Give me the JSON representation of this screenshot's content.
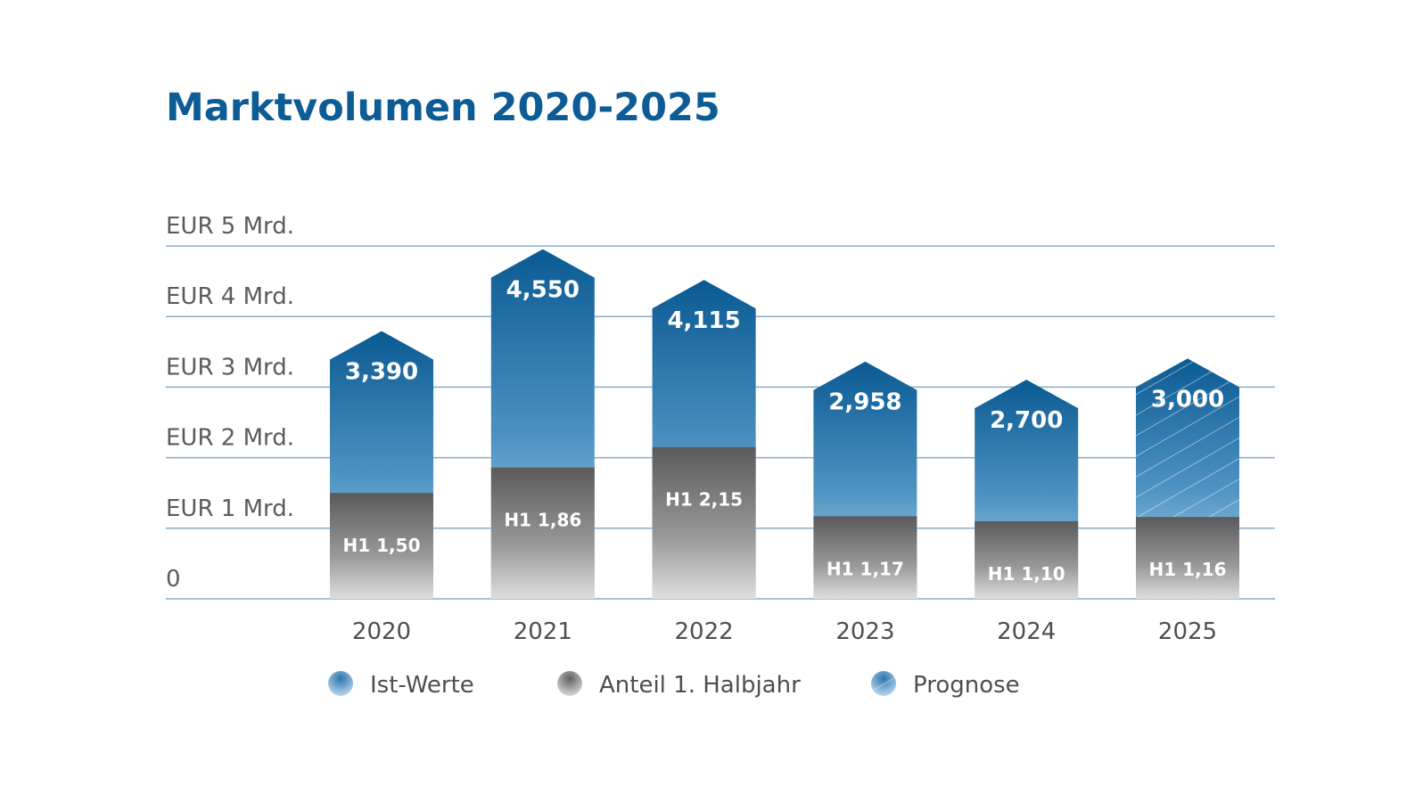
{
  "chart_data": {
    "type": "bar",
    "title": "Marktvolumen 2020-2025",
    "categories": [
      "2020",
      "2021",
      "2022",
      "2023",
      "2024",
      "2025"
    ],
    "series": [
      {
        "name": "Ist-Werte",
        "values": [
          3.39,
          4.55,
          4.115,
          2.958,
          2.7,
          null
        ],
        "labels": [
          "3,390",
          "4,550",
          "4,115",
          "2,958",
          "2,700",
          ""
        ],
        "color": "#0d5c96"
      },
      {
        "name": "Anteil 1. Halbjahr",
        "values": [
          1.5,
          1.86,
          2.15,
          1.17,
          1.1,
          1.16
        ],
        "labels": [
          "H1 1,50",
          "H1 1,86",
          "H1 2,15",
          "H1 1,17",
          "H1 1,10",
          "H1 1,16"
        ],
        "color": "#606060"
      },
      {
        "name": "Prognose",
        "values": [
          null,
          null,
          null,
          null,
          null,
          3.0
        ],
        "labels": [
          "",
          "",
          "",
          "",
          "",
          "3,000"
        ],
        "color": "#1f6fa8"
      }
    ],
    "yticks": [
      {
        "value": 0,
        "label": "0"
      },
      {
        "value": 1,
        "label": "EUR 1 Mrd."
      },
      {
        "value": 2,
        "label": "EUR 2 Mrd."
      },
      {
        "value": 3,
        "label": "EUR 3 Mrd."
      },
      {
        "value": 4,
        "label": "EUR 4 Mrd."
      },
      {
        "value": 5,
        "label": "EUR 5 Mrd."
      }
    ],
    "ylim": [
      0,
      5
    ],
    "grid": true,
    "legend_position": "bottom",
    "xlabel": "",
    "ylabel": ""
  }
}
